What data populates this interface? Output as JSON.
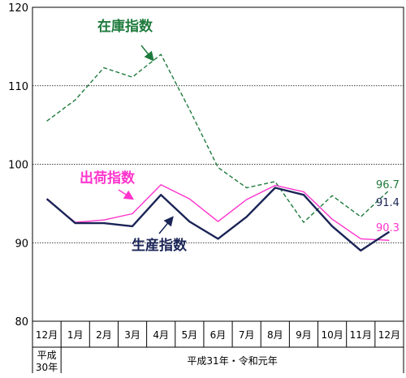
{
  "chart_data": {
    "type": "line",
    "ylim": [
      80,
      120
    ],
    "yticks": [
      "80",
      "90",
      "100",
      "110",
      "120"
    ],
    "categories": [
      "12月",
      "1月",
      "2月",
      "3月",
      "4月",
      "5月",
      "6月",
      "7月",
      "8月",
      "9月",
      "10月",
      "11月",
      "12月"
    ],
    "year_labels": [
      "平成",
      "30年",
      "平成31年・令和元年"
    ],
    "grid": true,
    "series": [
      {
        "name": "在庫指数",
        "color": "#1e7a3c",
        "style": "dashed",
        "values": [
          105.5,
          108.2,
          112.3,
          111.1,
          114.0,
          107.0,
          99.6,
          97.0,
          97.8,
          92.6,
          96.0,
          93.3,
          96.7
        ],
        "end_label": "96.7"
      },
      {
        "name": "出荷指数",
        "color": "#ff33cc",
        "style": "solid-thin",
        "values": [
          95.5,
          92.6,
          92.9,
          93.7,
          97.4,
          95.6,
          92.7,
          95.5,
          97.3,
          96.5,
          93.0,
          90.5,
          90.3
        ],
        "end_label": "90.3"
      },
      {
        "name": "生産指数",
        "color": "#1a2456",
        "style": "solid-thick",
        "values": [
          95.6,
          92.5,
          92.5,
          92.1,
          96.1,
          92.7,
          90.5,
          93.3,
          97.0,
          96.1,
          92.1,
          89.0,
          91.4
        ],
        "end_label": "91.4"
      }
    ]
  }
}
